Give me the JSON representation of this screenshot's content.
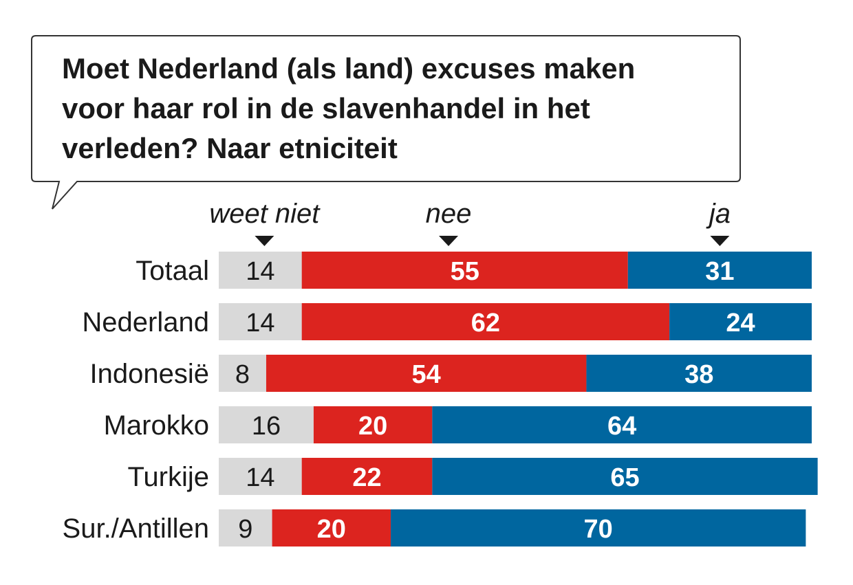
{
  "chart_data": {
    "type": "bar",
    "stacked": true,
    "orientation": "horizontal",
    "title": "Moet Nederland (als land) excuses maken voor haar rol in de slavenhandel in het verleden? Naar etniciteit",
    "title_lines": [
      "Moet Nederland (als land) excuses maken",
      "voor haar rol in de slavenhandel in het",
      "verleden? Naar etniciteit"
    ],
    "categories": [
      "Totaal",
      "Nederland",
      "Indonesië",
      "Marokko",
      "Turkije",
      "Sur./Antillen"
    ],
    "series": [
      {
        "name": "weet niet",
        "color": "#d9d9d9",
        "values": [
          14,
          14,
          8,
          16,
          14,
          9
        ]
      },
      {
        "name": "nee",
        "color": "#dc241f",
        "values": [
          55,
          62,
          54,
          20,
          22,
          20
        ]
      },
      {
        "name": "ja",
        "color": "#00669f",
        "values": [
          31,
          24,
          38,
          64,
          65,
          70
        ]
      }
    ],
    "xlim": [
      0,
      100
    ],
    "unit": "%",
    "legend_placement": "top",
    "grid": false
  }
}
